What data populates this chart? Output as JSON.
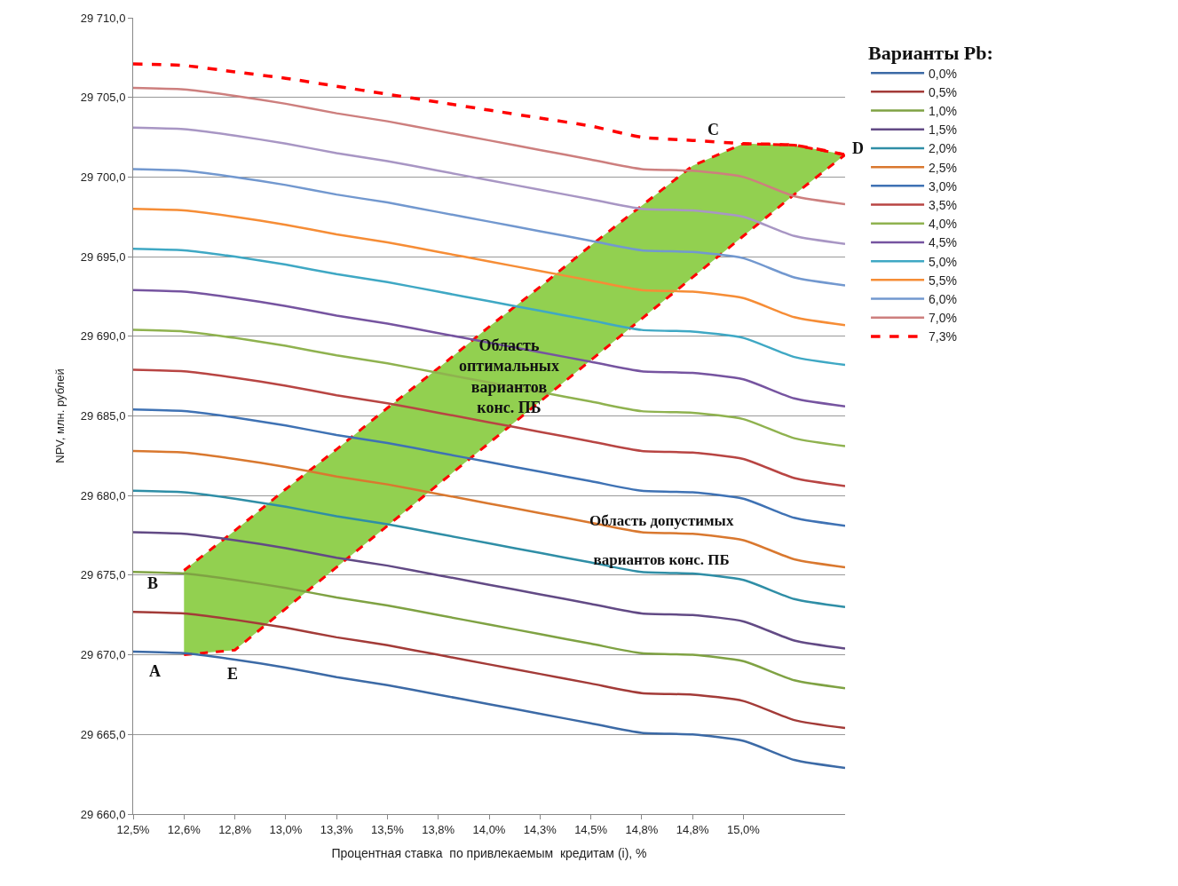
{
  "chart_data": {
    "type": "line",
    "xlabel": "Процентная ставка  по привлекаемым  кредитам (i), %",
    "ylabel": "NPV, млн. рублей",
    "legend_title": "Варианты Pb:",
    "categories": [
      "12,5%",
      "12,6%",
      "12,8%",
      "13,0%",
      "13,3%",
      "13,5%",
      "13,8%",
      "14,0%",
      "14,3%",
      "14,5%",
      "14,8%",
      "14,8%",
      "15,0%",
      null,
      null
    ],
    "ylim": [
      29660,
      29710
    ],
    "yticks": [
      {
        "value": 29660,
        "label": "29 660,0"
      },
      {
        "value": 29665,
        "label": "29 665,0"
      },
      {
        "value": 29670,
        "label": "29 670,0"
      },
      {
        "value": 29675,
        "label": "29 675,0"
      },
      {
        "value": 29680,
        "label": "29 680,0"
      },
      {
        "value": 29685,
        "label": "29 685,0"
      },
      {
        "value": 29690,
        "label": "29 690,0"
      },
      {
        "value": 29695,
        "label": "29 695,0"
      },
      {
        "value": 29700,
        "label": "29 700,0"
      },
      {
        "value": 29705,
        "label": "29 705,0"
      },
      {
        "value": 29710,
        "label": "29 710,0"
      }
    ],
    "grid": "y",
    "legend": "top right",
    "series": [
      {
        "type": "line",
        "color": "#ff0000",
        "line_style": "dashed",
        "values": [
          null,
          29675.3,
          29677.8,
          29680.4,
          29682.9,
          29685.5,
          29688.0,
          29690.6,
          29693.1,
          29695.7,
          29698.2,
          29700.7,
          29702.1,
          29702.0,
          29701.4
        ],
        "upper": [
          null,
          29675.3,
          29677.8,
          29680.4,
          29682.9,
          29685.5,
          29688.0,
          29690.6,
          29693.1,
          29695.7,
          29698.2,
          29700.7,
          29702.1,
          29702.0,
          29701.4
        ],
        "lower": [
          null,
          29670.0,
          29670.3,
          29672.9,
          29675.5,
          29678.1,
          29680.7,
          29683.3,
          29685.9,
          29688.5,
          29691.1,
          29693.7,
          29696.3,
          29698.9,
          29701.4
        ]
      },
      {
        "type": "line",
        "color": "#ff0000",
        "line_style": "dashed",
        "values": [
          null,
          29670.0,
          29670.3,
          29672.9,
          29675.5,
          29678.1,
          29680.7,
          29683.3,
          29685.9,
          29688.5,
          29691.1,
          29693.7,
          29696.3,
          29698.9,
          29701.4
        ]
      },
      {
        "name": "0,0%",
        "color": "#3c6aa6",
        "values": [
          29670.2,
          29670.1,
          29669.7,
          29669.2,
          29668.6,
          29668.1,
          29667.5,
          29666.9,
          29666.3,
          29665.7,
          29665.1,
          29665.0,
          29664.6,
          29663.4,
          29662.9
        ]
      },
      {
        "name": "0,5%",
        "color": "#a33b38",
        "values": [
          29672.7,
          29672.6,
          29672.2,
          29671.7,
          29671.1,
          29670.6,
          29670.0,
          29669.4,
          29668.8,
          29668.2,
          29667.6,
          29667.5,
          29667.1,
          29665.9,
          29665.4
        ]
      },
      {
        "name": "1,0%",
        "color": "#7fa243",
        "values": [
          29675.2,
          29675.1,
          29674.7,
          29674.2,
          29673.6,
          29673.1,
          29672.5,
          29671.9,
          29671.3,
          29670.7,
          29670.1,
          29670.0,
          29669.6,
          29668.4,
          29667.9
        ]
      },
      {
        "name": "1,5%",
        "color": "#624a85",
        "values": [
          29677.7,
          29677.6,
          29677.2,
          29676.7,
          29676.1,
          29675.6,
          29675.0,
          29674.4,
          29673.8,
          29673.2,
          29672.6,
          29672.5,
          29672.1,
          29670.9,
          29670.4
        ]
      },
      {
        "name": "2,0%",
        "color": "#2f8ea6",
        "values": [
          29680.3,
          29680.2,
          29679.8,
          29679.3,
          29678.7,
          29678.2,
          29677.6,
          29677.0,
          29676.4,
          29675.8,
          29675.2,
          29675.1,
          29674.7,
          29673.5,
          29673.0
        ]
      },
      {
        "name": "2,5%",
        "color": "#d9782f",
        "values": [
          29682.8,
          29682.7,
          29682.3,
          29681.8,
          29681.2,
          29680.7,
          29680.1,
          29679.5,
          29678.9,
          29678.3,
          29677.7,
          29677.6,
          29677.2,
          29676.0,
          29675.5
        ]
      },
      {
        "name": "3,0%",
        "color": "#3f72b4",
        "values": [
          29685.4,
          29685.3,
          29684.9,
          29684.4,
          29683.8,
          29683.3,
          29682.7,
          29682.1,
          29681.5,
          29680.9,
          29680.3,
          29680.2,
          29679.8,
          29678.6,
          29678.1
        ]
      },
      {
        "name": "3,5%",
        "color": "#b84543",
        "values": [
          29687.9,
          29687.8,
          29687.4,
          29686.9,
          29686.3,
          29685.8,
          29685.2,
          29684.6,
          29684.0,
          29683.4,
          29682.8,
          29682.7,
          29682.3,
          29681.1,
          29680.6
        ]
      },
      {
        "name": "4,0%",
        "color": "#8fb24f",
        "values": [
          29690.4,
          29690.3,
          29689.9,
          29689.4,
          29688.8,
          29688.3,
          29687.7,
          29687.1,
          29686.5,
          29685.9,
          29685.3,
          29685.2,
          29684.8,
          29683.6,
          29683.1
        ]
      },
      {
        "name": "4,5%",
        "color": "#7654a0",
        "values": [
          29692.9,
          29692.8,
          29692.4,
          29691.9,
          29691.3,
          29690.8,
          29690.2,
          29689.6,
          29689.0,
          29688.4,
          29687.8,
          29687.7,
          29687.3,
          29686.1,
          29685.6
        ]
      },
      {
        "name": "5,0%",
        "color": "#3fa8c4",
        "values": [
          29695.5,
          29695.4,
          29695.0,
          29694.5,
          29693.9,
          29693.4,
          29692.8,
          29692.2,
          29691.6,
          29691.0,
          29690.4,
          29690.3,
          29689.9,
          29688.7,
          29688.2
        ]
      },
      {
        "name": "5,5%",
        "color": "#f68d36",
        "values": [
          29698.0,
          29697.9,
          29697.5,
          29697.0,
          29696.4,
          29695.9,
          29695.3,
          29694.7,
          29694.1,
          29693.5,
          29692.9,
          29692.8,
          29692.4,
          29691.2,
          29690.7
        ]
      },
      {
        "name": "6,0%",
        "color": "#7298cf",
        "values": [
          29700.5,
          29700.4,
          29700.0,
          29699.5,
          29698.9,
          29698.4,
          29697.8,
          29697.2,
          29696.6,
          29696.0,
          29695.4,
          29695.3,
          29694.9,
          29693.7,
          29693.2
        ]
      },
      {
        "color": "#a896c4",
        "values": [
          29703.1,
          29703.0,
          29702.6,
          29702.1,
          29701.5,
          29701.0,
          29700.4,
          29699.8,
          29699.2,
          29698.6,
          29698.0,
          29697.9,
          29697.5,
          29696.3,
          29695.8
        ]
      },
      {
        "name": "7,0%",
        "color": "#cd7f7e",
        "values": [
          29705.6,
          29705.5,
          29705.1,
          29704.6,
          29704.0,
          29703.5,
          29702.9,
          29702.3,
          29701.7,
          29701.1,
          29700.5,
          29700.4,
          29700.0,
          29698.8,
          29698.3
        ]
      },
      {
        "name": "7,3%",
        "color": "#ff0000",
        "line_style": "dashed",
        "values": [
          29707.1,
          29707.0,
          29706.6,
          29706.2,
          29705.7,
          29705.2,
          29704.7,
          29704.2,
          29703.7,
          29703.2,
          29702.5,
          29702.3,
          29702.1,
          29702.0,
          29701.4
        ]
      }
    ],
    "annotations": [
      "Область\nоптимальных\nвариантов\nконс. ПБ",
      "Область допустимых\n\nвариантов конс. ПБ",
      "A",
      "B",
      "C",
      "D",
      "E"
    ]
  }
}
